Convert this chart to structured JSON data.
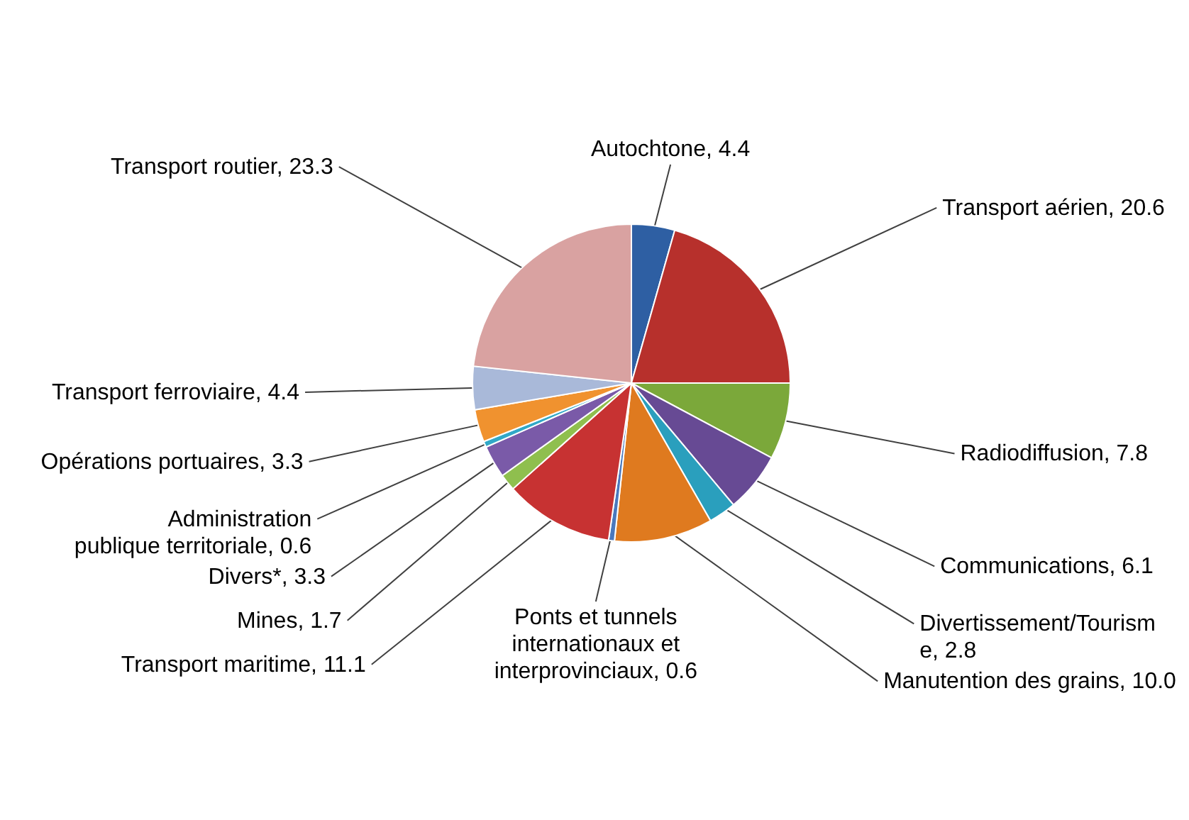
{
  "chart_data": {
    "type": "pie",
    "categories": [
      "Autochtone",
      "Transport aérien",
      "Radiodiffusion",
      "Communications",
      "Divertissement/Tourisme",
      "Manutention des grains",
      "Ponts et tunnels internationaux et interprovinciaux",
      "Transport maritime",
      "Mines",
      "Divers*",
      "Administration publique territoriale",
      "Opérations portuaires",
      "Transport ferroviaire",
      "Transport routier"
    ],
    "values": [
      4.4,
      20.6,
      7.8,
      6.1,
      2.8,
      10.0,
      0.6,
      11.1,
      1.7,
      3.3,
      0.6,
      3.3,
      4.4,
      23.3
    ],
    "value_labels": [
      "4.4",
      "20.6",
      "7.8",
      "6.1",
      "2.8",
      "10.0",
      "0.6",
      "11.1",
      "1.7",
      "3.3",
      "0.6",
      "3.3",
      "4.4",
      "23.3"
    ],
    "colors": [
      "#2e5fa3",
      "#b7302c",
      "#7ba83a",
      "#674a94",
      "#2a9fbd",
      "#df7a1f",
      "#4a78bd",
      "#c73232",
      "#8fbf4e",
      "#7a5aa8",
      "#31a8c7",
      "#f0922f",
      "#a9b9d9",
      "#d9a2a1"
    ]
  }
}
